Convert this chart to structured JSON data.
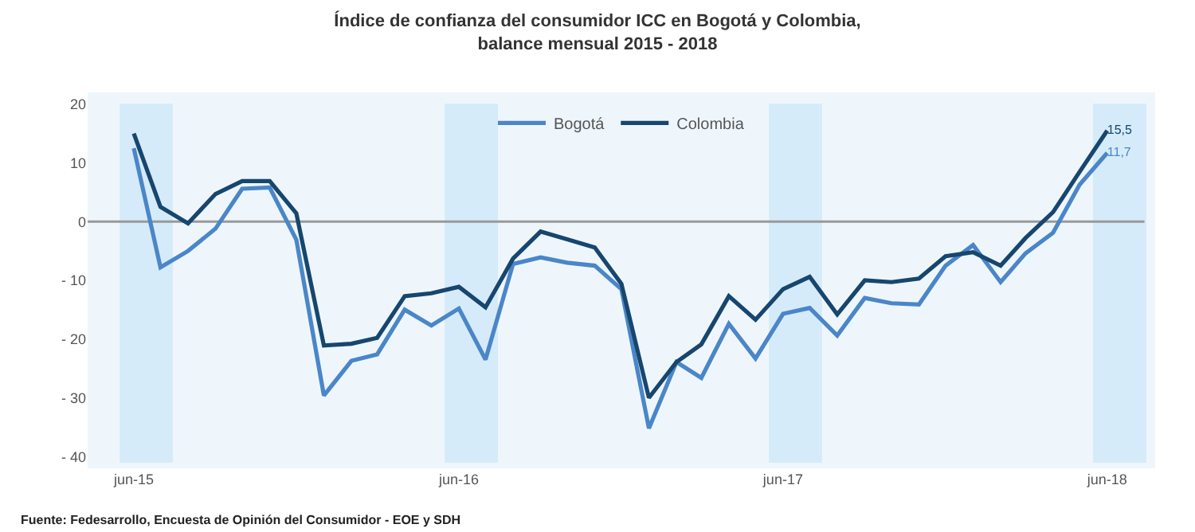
{
  "chart_data": {
    "type": "line",
    "title": "Índice de confianza del consumidor ICC en Bogotá y Colombia,\nbalance mensual 2015 - 2018",
    "x": [
      "2015-06",
      "2015-07",
      "2015-08",
      "2015-09",
      "2015-10",
      "2015-11",
      "2015-12",
      "2016-01",
      "2016-02",
      "2016-03",
      "2016-04",
      "2016-05",
      "2016-06",
      "2016-07",
      "2016-08",
      "2016-09",
      "2016-10",
      "2016-11",
      "2016-12",
      "2017-01",
      "2017-02",
      "2017-03",
      "2017-04",
      "2017-05",
      "2017-06",
      "2017-07",
      "2017-08",
      "2017-09",
      "2017-10",
      "2017-11",
      "2017-12",
      "2018-01",
      "2018-02",
      "2018-03",
      "2018-04",
      "2018-05",
      "2018-06"
    ],
    "series": [
      {
        "name": "Bogotá",
        "color": "#4a86c8",
        "values": [
          12.5,
          -7.8,
          -5.0,
          -1.2,
          5.6,
          5.8,
          -3.1,
          -29.6,
          -23.7,
          -22.6,
          -15.0,
          -17.7,
          -14.8,
          -23.5,
          -7.2,
          -6.1,
          -7.0,
          -7.5,
          -11.5,
          -35.2,
          -23.9,
          -26.6,
          -17.4,
          -23.3,
          -15.7,
          -14.7,
          -19.4,
          -13.0,
          -13.9,
          -14.1,
          -7.5,
          -4.0,
          -10.3,
          -5.4,
          -1.9,
          6.3,
          11.7
        ],
        "value_labels": [
          null,
          null,
          null,
          null,
          null,
          null,
          null,
          null,
          null,
          null,
          null,
          null,
          null,
          null,
          null,
          null,
          null,
          null,
          null,
          null,
          null,
          null,
          null,
          null,
          null,
          null,
          null,
          null,
          null,
          null,
          null,
          null,
          null,
          null,
          null,
          null,
          "11,7"
        ]
      },
      {
        "name": "Colombia",
        "color": "#17466e",
        "values": [
          15.0,
          2.5,
          -0.3,
          4.7,
          6.9,
          6.9,
          1.4,
          -21.1,
          -20.8,
          -19.8,
          -12.7,
          -12.2,
          -11.1,
          -14.6,
          -6.3,
          -1.7,
          -3.0,
          -4.4,
          -10.6,
          -30.0,
          -23.9,
          -20.9,
          -12.7,
          -16.7,
          -11.5,
          -9.4,
          -15.8,
          -10.0,
          -10.3,
          -9.7,
          -5.9,
          -5.2,
          -7.5,
          -2.8,
          1.6,
          8.5,
          15.5
        ],
        "value_labels": [
          null,
          null,
          null,
          null,
          null,
          null,
          null,
          null,
          null,
          null,
          null,
          null,
          null,
          null,
          null,
          null,
          null,
          null,
          null,
          null,
          null,
          null,
          null,
          null,
          null,
          null,
          null,
          null,
          null,
          null,
          null,
          null,
          null,
          null,
          null,
          null,
          "15,5"
        ]
      }
    ],
    "xlim": [
      "2015-04-10",
      "2018-07-25"
    ],
    "xticks": [
      {
        "value": "2015-06",
        "label": "jun-15"
      },
      {
        "value": "2016-06",
        "label": "jun-16"
      },
      {
        "value": "2017-06",
        "label": "jun-17"
      },
      {
        "value": "2018-06",
        "label": "jun-18"
      }
    ],
    "ylim": [
      -42,
      22
    ],
    "yticks": [
      {
        "value": -40,
        "label": "- 40"
      },
      {
        "value": -30,
        "label": "- 30"
      },
      {
        "value": -20,
        "label": "- 20"
      },
      {
        "value": -10,
        "label": "- 10"
      },
      0,
      10,
      20
    ],
    "bands": [
      {
        "axis": "x",
        "from": "2015-05-16",
        "to": "2015-07-15",
        "color": "#d5ebf9"
      },
      {
        "axis": "x",
        "from": "2016-05-16",
        "to": "2016-07-15",
        "color": "#d5ebf9"
      },
      {
        "axis": "x",
        "from": "2017-05-16",
        "to": "2017-07-15",
        "color": "#d5ebf9"
      },
      {
        "axis": "x",
        "from": "2018-05-16",
        "to": "2018-07-15",
        "color": "#d5ebf9"
      }
    ],
    "ref_lines": [
      {
        "axis": "y",
        "value": 0,
        "color": "#999999"
      }
    ],
    "annotations": [
      "Fuente: Fedesarrollo, Encuesta de Opinión del Consumidor - EOE y SDH"
    ],
    "legend": "top",
    "grid": false
  }
}
